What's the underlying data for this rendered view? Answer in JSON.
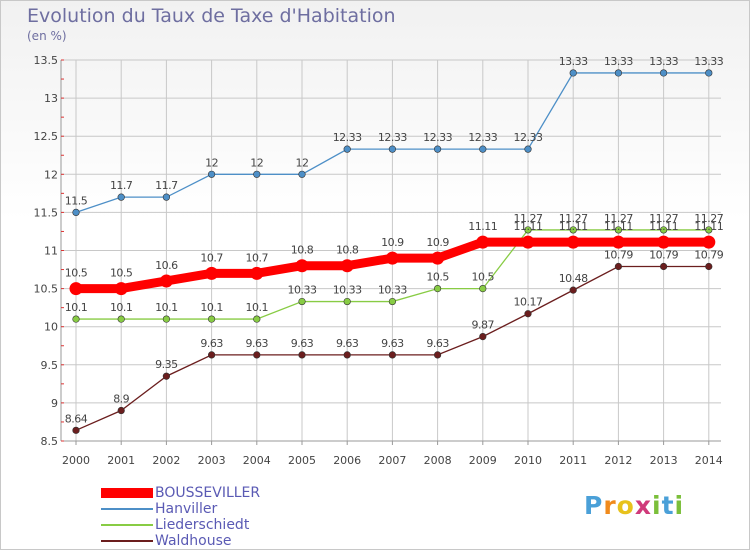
{
  "title": "Evolution du Taux de Taxe d'Habitation",
  "unit_label": "(en %)",
  "logo_text": "Proxiti",
  "colors": {
    "title": "#6e6ea0",
    "grid": "#c8c8c8",
    "axis": "#999999",
    "tick_label": "#444444",
    "value_label": "#444444",
    "legend_text": "#5a5ab4"
  },
  "chart_data": {
    "type": "line",
    "title": "Evolution du Taux de Taxe d'Habitation",
    "ylabel": "(en %)",
    "xlabel": "",
    "x": [
      2000,
      2001,
      2002,
      2003,
      2004,
      2005,
      2006,
      2007,
      2008,
      2009,
      2010,
      2011,
      2012,
      2013,
      2014
    ],
    "ylim": [
      8.5,
      13.5
    ],
    "yticks": [
      8.5,
      9,
      9.5,
      10,
      10.5,
      11,
      11.5,
      12,
      12.5,
      13,
      13.5
    ],
    "grid": true,
    "legend_position": "bottom-left",
    "series": [
      {
        "name": "BOUSSEVILLER",
        "color": "#ff0000",
        "emphasis": true,
        "values": [
          10.5,
          10.5,
          10.6,
          10.7,
          10.7,
          10.8,
          10.8,
          10.9,
          10.9,
          11.11,
          11.11,
          11.11,
          11.11,
          11.11,
          11.11
        ],
        "labels": [
          "10.5",
          "10.5",
          "10.6",
          "10.7",
          "10.7",
          "10.8",
          "10.8",
          "10.9",
          "10.9",
          "11.11",
          "11.11",
          "11.11",
          "11.11",
          "11.11",
          "11.11"
        ]
      },
      {
        "name": "Hanviller",
        "color": "#4d8fc7",
        "values": [
          11.5,
          11.7,
          11.7,
          12,
          12,
          12,
          12.33,
          12.33,
          12.33,
          12.33,
          12.33,
          13.33,
          13.33,
          13.33,
          13.33
        ],
        "labels": [
          "11.5",
          "11.7",
          "11.7",
          "12",
          "12",
          "12",
          "12.33",
          "12.33",
          "12.33",
          "12.33",
          "12.33",
          "13.33",
          "13.33",
          "13.33",
          "13.33"
        ]
      },
      {
        "name": "Liederschiedt",
        "color": "#88cc44",
        "values": [
          10.1,
          10.1,
          10.1,
          10.1,
          10.1,
          10.33,
          10.33,
          10.33,
          10.5,
          10.5,
          11.27,
          11.27,
          11.27,
          11.27,
          11.27
        ],
        "labels": [
          "10.1",
          "10.1",
          "10.1",
          "10.1",
          "10.1",
          "10.33",
          "10.33",
          "10.33",
          "10.5",
          "10.5",
          "11.27",
          "11.27",
          "11.27",
          "11.27",
          "11.27"
        ]
      },
      {
        "name": "Waldhouse",
        "color": "#6b1e1e",
        "values": [
          8.64,
          8.9,
          9.35,
          9.63,
          9.63,
          9.63,
          9.63,
          9.63,
          9.63,
          9.87,
          10.17,
          10.48,
          10.79,
          10.79,
          10.79
        ],
        "labels": [
          "8.64",
          "8.9",
          "9.35",
          "9.63",
          "9.63",
          "9.63",
          "9.63",
          "9.63",
          "9.63",
          "9.87",
          "10.17",
          "10.48",
          "10.79",
          "10.79",
          "10.79"
        ]
      }
    ]
  }
}
